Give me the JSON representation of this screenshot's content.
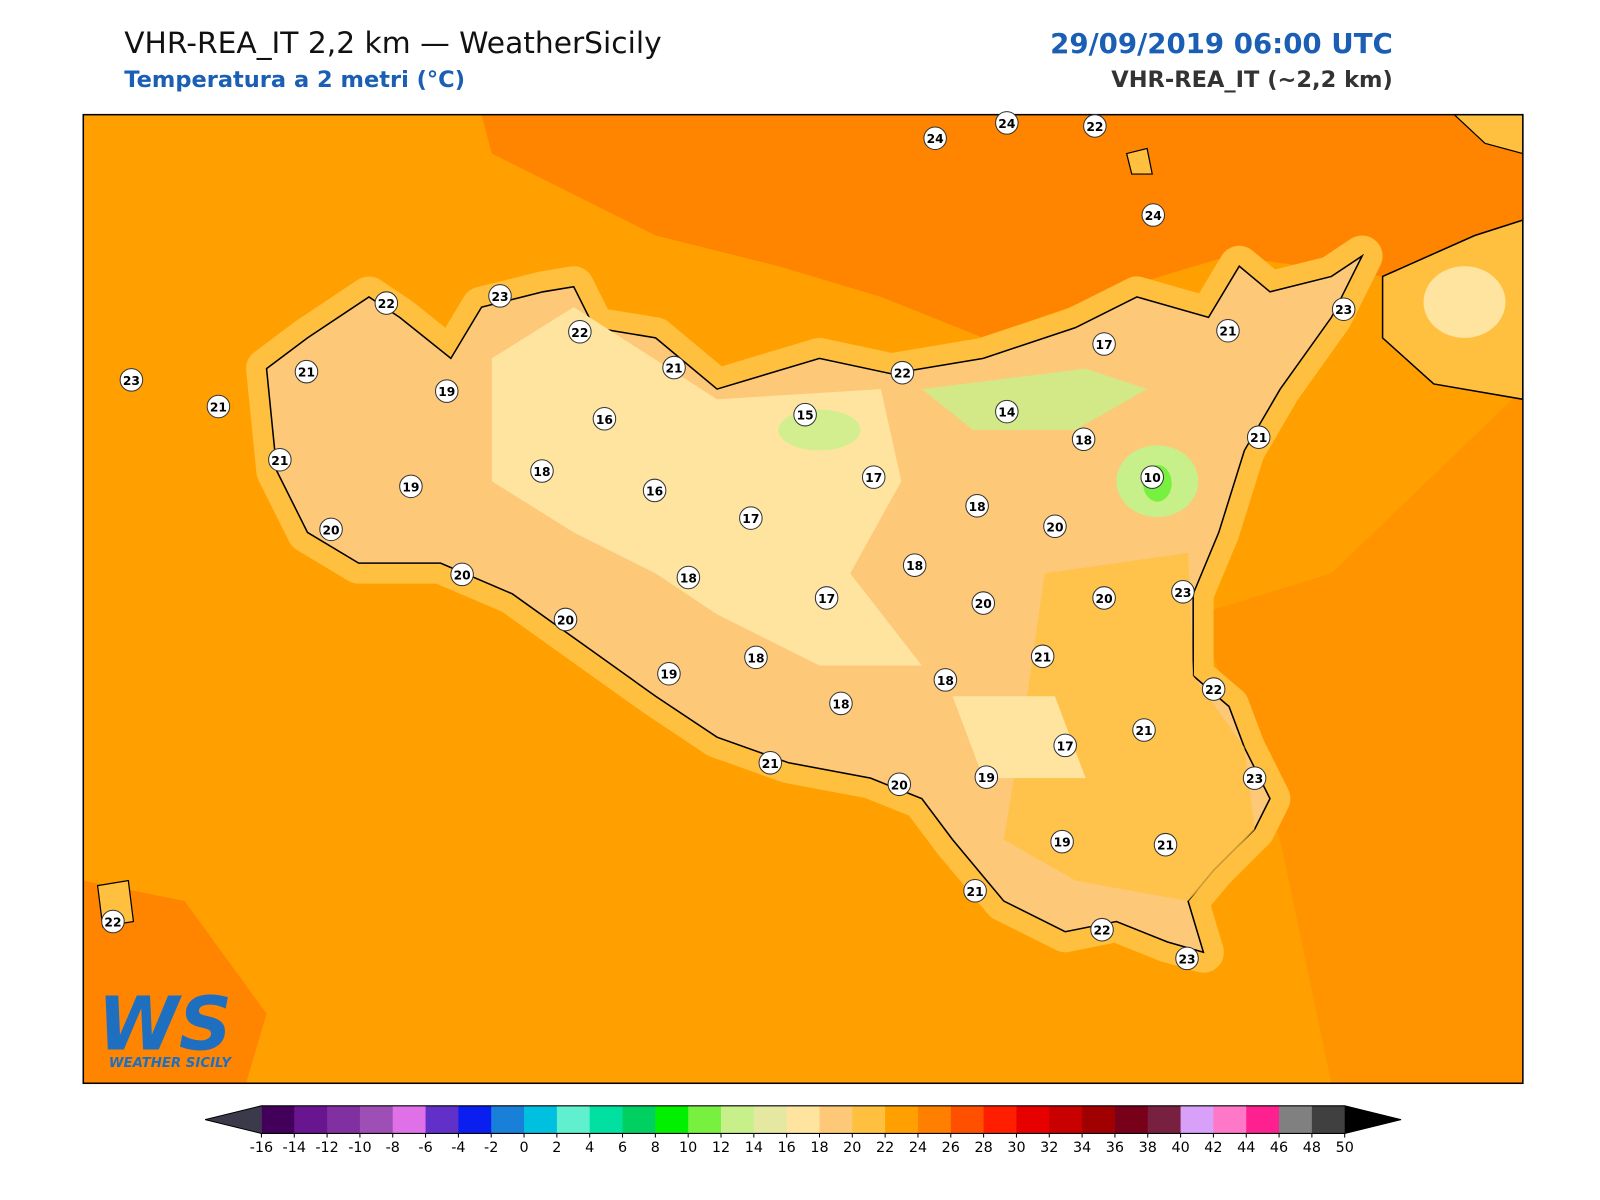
{
  "header": {
    "title": "VHR-REA_IT 2,2 km — WeatherSicily",
    "subtitle": "Temperatura a 2 metri (°C)",
    "datetime": "29/09/2019 06:00 UTC",
    "model": "VHR-REA_IT (~2,2 km)"
  },
  "stations": [
    24,
    24,
    22,
    24,
    23,
    21,
    17,
    22,
    14,
    18,
    21,
    10,
    15,
    17,
    18,
    20,
    23,
    20,
    20,
    21,
    22,
    21,
    17,
    23,
    19,
    18,
    18,
    20,
    21,
    19,
    18,
    17,
    18,
    18,
    17,
    16,
    16,
    21,
    22,
    23,
    22,
    21,
    19,
    18,
    19,
    23,
    21,
    21,
    20,
    20,
    20,
    21,
    22,
    23,
    19,
    21,
    22
  ],
  "colorbar": {
    "ticks": [
      -16,
      -14,
      -12,
      -10,
      -8,
      -6,
      -4,
      -2,
      0,
      2,
      4,
      6,
      8,
      10,
      12,
      14,
      16,
      18,
      20,
      22,
      24,
      26,
      28,
      30,
      32,
      34,
      36,
      38,
      40,
      42,
      44,
      46,
      48,
      50
    ],
    "colors": [
      "#43005a",
      "#6a1590",
      "#8030a0",
      "#9e4fb5",
      "#e070e8",
      "#6030c8",
      "#0a1ef0",
      "#1880d8",
      "#00c0e0",
      "#60f0d0",
      "#00e0a0",
      "#00d060",
      "#00f000",
      "#78f040",
      "#c8f08a",
      "#e4e8a0",
      "#ffe4a0",
      "#fdc878",
      "#ffc040",
      "#ffa000",
      "#ff8000",
      "#ff5000",
      "#ff1e00",
      "#e60000",
      "#c80000",
      "#a00000",
      "#780018",
      "#782040",
      "#d8a0f8",
      "#ff78c8",
      "#ff2090",
      "#808080",
      "#404040"
    ],
    "under_color": "#3a3a4a",
    "over_color": "#000000"
  },
  "logo": {
    "mark": "WS",
    "text": "WEATHER SICILY"
  }
}
